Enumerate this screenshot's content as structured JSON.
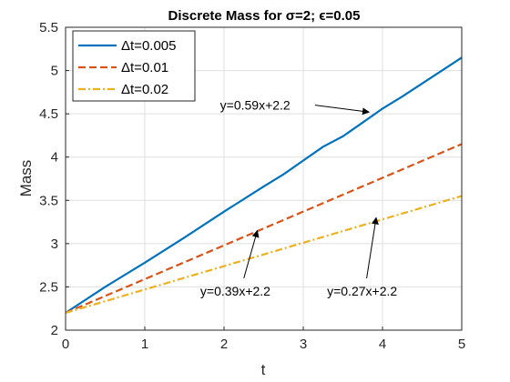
{
  "chart_data": {
    "type": "line",
    "title": "Discrete Mass for σ=2; ϵ=0.05",
    "xlabel": "t",
    "ylabel": "Mass",
    "xlim": [
      0,
      5
    ],
    "ylim": [
      2,
      5.5
    ],
    "xticks": [
      "0",
      "1",
      "2",
      "3",
      "4",
      "5"
    ],
    "yticks": [
      "2",
      "2.5",
      "3",
      "3.5",
      "4",
      "4.5",
      "5",
      "5.5"
    ],
    "grid": true,
    "legend_position": "top-left",
    "series": [
      {
        "name": "Δt=0.005",
        "color": "#0072BD",
        "style": "solid",
        "x": [
          0,
          0.5,
          1,
          1.5,
          2,
          2.5,
          2.75,
          3,
          3.25,
          3.5,
          3.75,
          4,
          4.25,
          4.5,
          4.75,
          5
        ],
        "y": [
          2.2,
          2.5,
          2.78,
          3.07,
          3.37,
          3.66,
          3.8,
          3.96,
          4.12,
          4.24,
          4.4,
          4.56,
          4.7,
          4.85,
          5.0,
          5.15
        ]
      },
      {
        "name": "Δt=0.01",
        "color": "#D95319",
        "style": "dashed",
        "x": [
          0,
          5
        ],
        "y": [
          2.2,
          4.15
        ]
      },
      {
        "name": "Δt=0.02",
        "color": "#EDB120",
        "style": "dashdot",
        "x": [
          0,
          5
        ],
        "y": [
          2.2,
          3.55
        ]
      }
    ],
    "annotations": [
      {
        "text": "y=0.59x+2.2",
        "text_x": 1.95,
        "text_y": 4.6,
        "target_x": 3.83,
        "target_y": 4.52,
        "arrow_start_x": 3.15,
        "arrow_start_y": 4.6
      },
      {
        "text": "y=0.39x+2.2",
        "text_x": 1.7,
        "text_y": 2.45,
        "target_x": 2.42,
        "target_y": 3.15,
        "arrow_start_x": 2.25,
        "arrow_start_y": 2.6
      },
      {
        "text": "y=0.27x+2.2",
        "text_x": 3.3,
        "text_y": 2.45,
        "target_x": 3.92,
        "target_y": 3.3,
        "arrow_start_x": 3.8,
        "arrow_start_y": 2.6
      }
    ]
  }
}
